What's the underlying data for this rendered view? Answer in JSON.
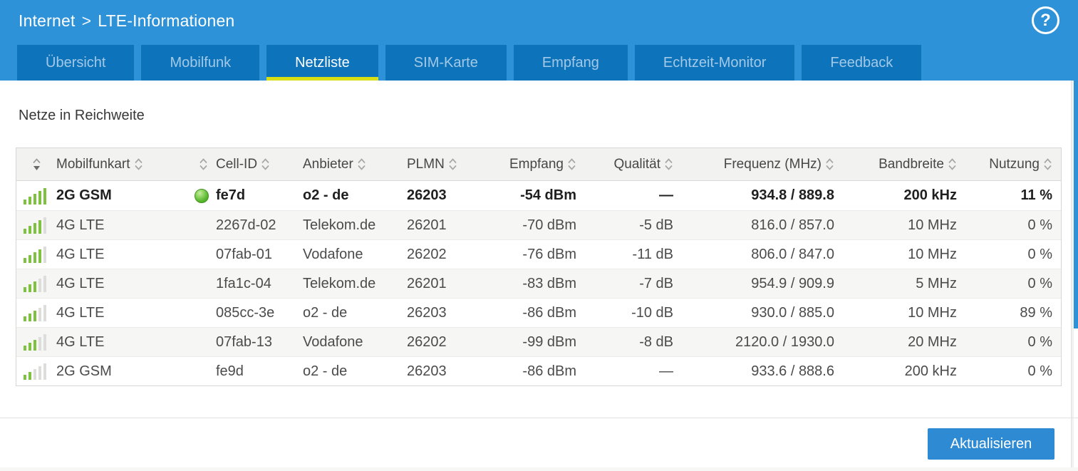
{
  "header": {
    "breadcrumb": {
      "section": "Internet",
      "separator": ">",
      "page": "LTE-Informationen"
    },
    "help_label": "?",
    "tabs": [
      {
        "label": "Übersicht",
        "active": false
      },
      {
        "label": "Mobilfunk",
        "active": false
      },
      {
        "label": "Netzliste",
        "active": true
      },
      {
        "label": "SIM-Karte",
        "active": false
      },
      {
        "label": "Empfang",
        "active": false
      },
      {
        "label": "Echtzeit-Monitor",
        "active": false
      },
      {
        "label": "Feedback",
        "active": false
      }
    ]
  },
  "main": {
    "title": "Netze in Reichweite",
    "table": {
      "columns": [
        "",
        "Mobilfunkart",
        "",
        "Cell-ID",
        "Anbieter",
        "PLMN",
        "Empfang",
        "Qualität",
        "Frequenz (MHz)",
        "Bandbreite",
        "Nutzung"
      ],
      "rows": [
        {
          "signal_bars": 5,
          "mobilfunkart": "2G GSM",
          "connected": true,
          "cell_id": "fe7d",
          "anbieter": "o2 - de",
          "plmn": "26203",
          "empfang": "-54 dBm",
          "qualitaet": "—",
          "frequenz": "934.8 / 889.8",
          "bandbreite": "200 kHz",
          "nutzung": "11 %",
          "bold": true
        },
        {
          "signal_bars": 4,
          "mobilfunkart": "4G LTE",
          "connected": false,
          "cell_id": "2267d-02",
          "anbieter": "Telekom.de",
          "plmn": "26201",
          "empfang": "-70 dBm",
          "qualitaet": "-5 dB",
          "frequenz": "816.0 / 857.0",
          "bandbreite": "10 MHz",
          "nutzung": "0 %",
          "bold": false
        },
        {
          "signal_bars": 4,
          "mobilfunkart": "4G LTE",
          "connected": false,
          "cell_id": "07fab-01",
          "anbieter": "Vodafone",
          "plmn": "26202",
          "empfang": "-76 dBm",
          "qualitaet": "-11 dB",
          "frequenz": "806.0 / 847.0",
          "bandbreite": "10 MHz",
          "nutzung": "0 %",
          "bold": false
        },
        {
          "signal_bars": 3,
          "mobilfunkart": "4G LTE",
          "connected": false,
          "cell_id": "1fa1c-04",
          "anbieter": "Telekom.de",
          "plmn": "26201",
          "empfang": "-83 dBm",
          "qualitaet": "-7 dB",
          "frequenz": "954.9 / 909.9",
          "bandbreite": "5 MHz",
          "nutzung": "0 %",
          "bold": false
        },
        {
          "signal_bars": 3,
          "mobilfunkart": "4G LTE",
          "connected": false,
          "cell_id": "085cc-3e",
          "anbieter": "o2 - de",
          "plmn": "26203",
          "empfang": "-86 dBm",
          "qualitaet": "-10 dB",
          "frequenz": "930.0 / 885.0",
          "bandbreite": "10 MHz",
          "nutzung": "89 %",
          "bold": false
        },
        {
          "signal_bars": 3,
          "mobilfunkart": "4G LTE",
          "connected": false,
          "cell_id": "07fab-13",
          "anbieter": "Vodafone",
          "plmn": "26202",
          "empfang": "-99 dBm",
          "qualitaet": "-8 dB",
          "frequenz": "2120.0 / 1930.0",
          "bandbreite": "20 MHz",
          "nutzung": "0 %",
          "bold": false
        },
        {
          "signal_bars": 2,
          "mobilfunkart": "2G GSM",
          "connected": false,
          "cell_id": "fe9d",
          "anbieter": "o2 - de",
          "plmn": "26203",
          "empfang": "-86 dBm",
          "qualitaet": "—",
          "frequenz": "933.6 / 888.6",
          "bandbreite": "200 kHz",
          "nutzung": "0 %",
          "bold": false
        }
      ]
    },
    "refresh_button": "Aktualisieren"
  },
  "colors": {
    "header_blue": "#2e92d8",
    "tab_blue": "#0d73bb",
    "active_tab_underline": "#d9df15",
    "signal_green": "#7fc241",
    "status_green": "#5cb830",
    "button_blue": "#2e8bd3"
  }
}
